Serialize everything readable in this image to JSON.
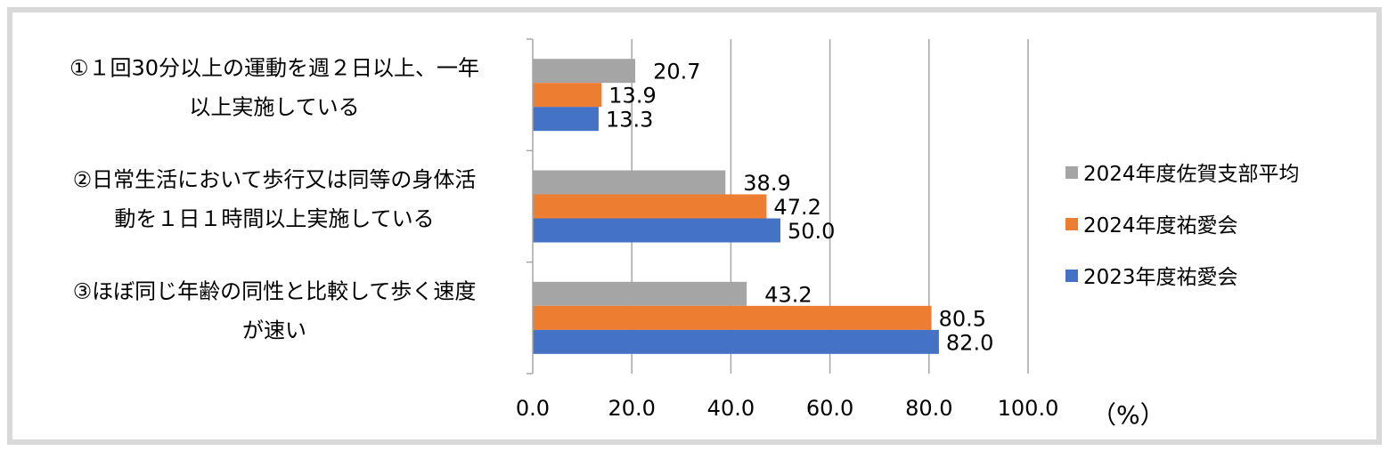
{
  "chart_data": {
    "type": "bar",
    "orientation": "horizontal",
    "categories": [
      [
        "①１回30分以上の運動を週２日以上、一年",
        "以上実施している"
      ],
      [
        "②日常生活において歩行又は同等の身体活",
        "動を１日１時間以上実施している"
      ],
      [
        "③ほぼ同じ年齢の同性と比較して歩く速度",
        "が速い"
      ]
    ],
    "series": [
      {
        "name": "2024年度佐賀支部平均",
        "color": "#a5a5a5",
        "values": [
          20.7,
          38.9,
          43.2
        ]
      },
      {
        "name": "2024年度祐愛会",
        "color": "#ed7d31",
        "values": [
          13.9,
          47.2,
          80.5
        ]
      },
      {
        "name": "2023年度祐愛会",
        "color": "#4472c4",
        "values": [
          13.3,
          50.0,
          82.0
        ]
      }
    ],
    "value_labels": [
      [
        "20.7",
        "38.9",
        "43.2"
      ],
      [
        "13.9",
        "47.2",
        "80.5"
      ],
      [
        "13.3",
        "50.0",
        "82.0"
      ]
    ],
    "xlim": [
      0,
      100
    ],
    "xticks": [
      "0.0",
      "20.0",
      "40.0",
      "60.0",
      "80.0",
      "100.0"
    ],
    "unit_label": "（%）",
    "grid": true,
    "legend_position": "right",
    "legend_order": [
      0,
      1,
      2
    ]
  }
}
